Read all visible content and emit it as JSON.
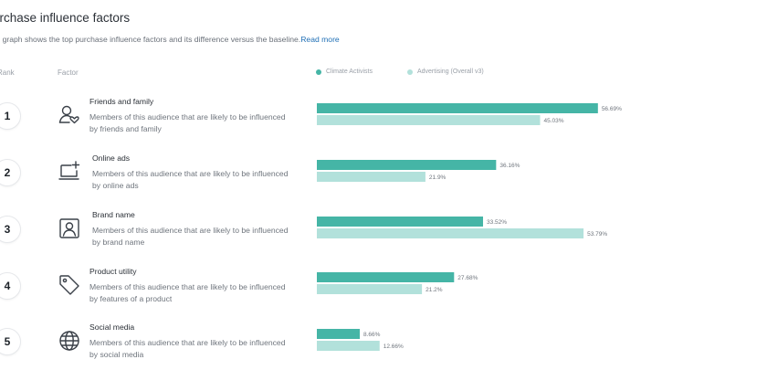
{
  "header": {
    "title": "urchase influence factors",
    "description": "is graph shows the top purchase influence factors and its difference versus the baseline.",
    "read_more": "Read more"
  },
  "columns": {
    "rank": "Rank",
    "factor": "Factor"
  },
  "colors": {
    "primary": "#45b5a6",
    "baseline": "#b2e1db"
  },
  "factors": [
    {
      "rank": "1",
      "name": "Friends and family",
      "description": "Members of this audience that are likely to be influenced by friends and family",
      "icon": "friends-family-icon"
    },
    {
      "rank": "2",
      "name": "Online ads",
      "description": "Members of this audience that are likely to be influenced by online ads",
      "icon": "online-ads-icon"
    },
    {
      "rank": "3",
      "name": "Brand name",
      "description": "Members of this audience that are likely to be influenced by brand name",
      "icon": "brand-name-icon"
    },
    {
      "rank": "4",
      "name": "Product utility",
      "description": "Members of this audience that are likely to be influenced by features of a product",
      "icon": "product-utility-icon"
    },
    {
      "rank": "5",
      "name": "Social media",
      "description": "Members of this audience that are likely to be influenced by social media",
      "icon": "social-media-icon"
    }
  ],
  "chart_data": {
    "type": "bar",
    "orientation": "horizontal",
    "categories": [
      "Friends and family",
      "Online ads",
      "Brand name",
      "Product utility",
      "Social media"
    ],
    "series": [
      {
        "name": "Climate Activists",
        "values": [
          56.69,
          36.16,
          33.52,
          27.68,
          8.66
        ],
        "labels": [
          "56.69%",
          "36.16%",
          "33.52%",
          "27.68%",
          "8.66%"
        ]
      },
      {
        "name": "Advertising (Overall v3)",
        "values": [
          45.03,
          21.9,
          53.79,
          21.2,
          12.66
        ],
        "labels": [
          "45.03%",
          "21.9%",
          "53.79%",
          "21.2%",
          "12.66%"
        ]
      }
    ],
    "xlim": [
      0,
      100
    ],
    "legend": "top",
    "grid": false
  }
}
